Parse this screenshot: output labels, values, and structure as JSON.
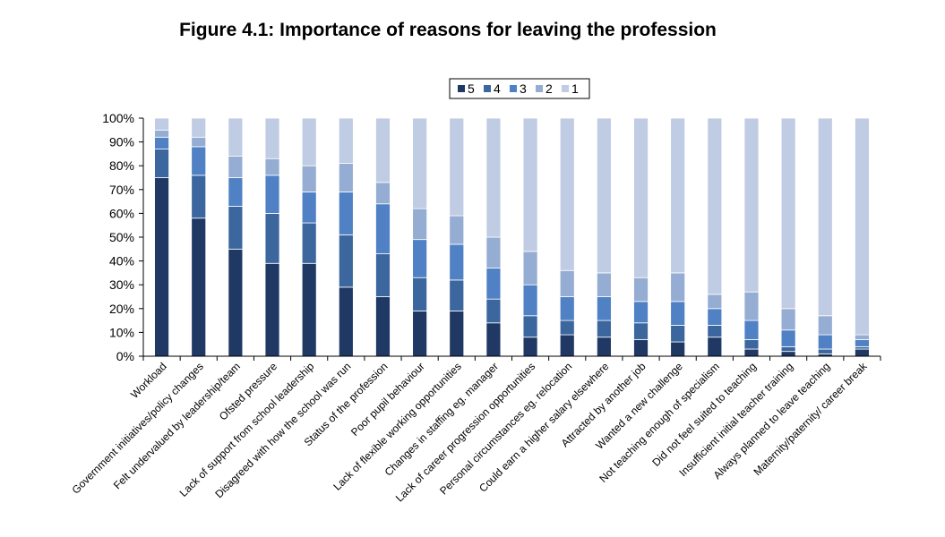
{
  "chart_data": {
    "type": "bar",
    "stacked": true,
    "percent": true,
    "title": "Figure 4.1: Importance of reasons for leaving the profession",
    "xlabel": "",
    "ylabel": "",
    "ylim": [
      0,
      100
    ],
    "yticks": [
      "0%",
      "10%",
      "20%",
      "30%",
      "40%",
      "50%",
      "60%",
      "70%",
      "80%",
      "90%",
      "100%"
    ],
    "legend_position": "top",
    "categories": [
      "Workload",
      "Government initiatives/policy changes",
      "Felt undervalued by leadership/team",
      "Ofsted pressure",
      "Lack of support from school leadership",
      "Disagreed with how the school was run",
      "Status of the profession",
      "Poor pupil behaviour",
      "Lack of flexible working opportunities",
      "Changes in staffing eg. manager",
      "Lack of career progression opportunities",
      "Personal circumstances eg. relocation",
      "Could earn a higher salary elsewhere",
      "Attracted by another job",
      "Wanted a new challenge",
      "Not teaching enough of specialism",
      "Did not feel suited to teaching",
      "Insufficient initial teacher training",
      "Always planned to leave teaching",
      "Maternity/paternity/ career break"
    ],
    "series": [
      {
        "name": "5",
        "color": "#1f3864",
        "values": [
          75,
          58,
          45,
          39,
          39,
          29,
          25,
          19,
          19,
          14,
          8,
          9,
          8,
          7,
          6,
          8,
          3,
          2,
          1,
          3
        ]
      },
      {
        "name": "4",
        "color": "#3c669e",
        "values": [
          12,
          18,
          18,
          21,
          17,
          22,
          18,
          14,
          13,
          10,
          9,
          6,
          7,
          7,
          7,
          5,
          4,
          2,
          2,
          1
        ]
      },
      {
        "name": "3",
        "color": "#4f81c4",
        "values": [
          5,
          12,
          12,
          16,
          13,
          18,
          21,
          16,
          15,
          13,
          13,
          10,
          10,
          9,
          10,
          7,
          8,
          7,
          6,
          3
        ]
      },
      {
        "name": "2",
        "color": "#95acd3",
        "values": [
          3,
          4,
          9,
          7,
          11,
          12,
          9,
          13,
          12,
          13,
          14,
          11,
          10,
          10,
          12,
          6,
          12,
          9,
          8,
          2
        ]
      },
      {
        "name": "1",
        "color": "#c0cce3",
        "values": [
          5,
          8,
          16,
          17,
          20,
          19,
          27,
          38,
          41,
          50,
          56,
          64,
          65,
          67,
          65,
          74,
          73,
          80,
          83,
          91
        ]
      }
    ]
  }
}
